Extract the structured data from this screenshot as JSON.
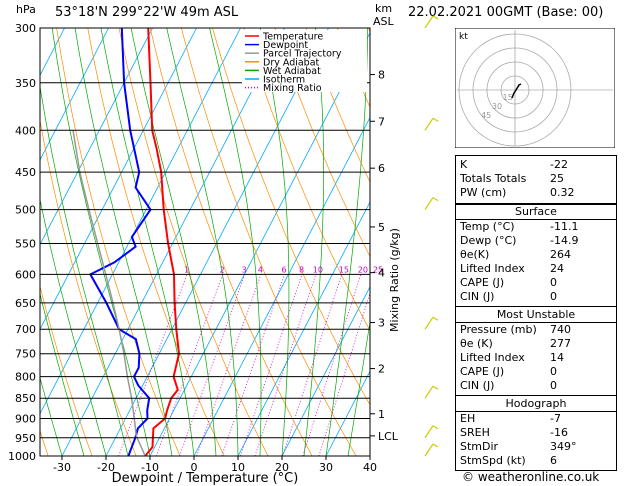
{
  "header": {
    "hpa_label": "hPa",
    "location": "53°18'N  299°22'W  49m  ASL",
    "km_label": "km",
    "asl_label": "ASL",
    "datetime": "22.02.2021  00GMT  (Base: 00)"
  },
  "chart_data": {
    "type": "line",
    "title": "",
    "xlabel": "Dewpoint / Temperature (°C)",
    "ylabel": "hPa",
    "right_axis_label": "Mixing Ratio (g/kg)",
    "x_ticks": [
      -30,
      -20,
      -10,
      0,
      10,
      20,
      30,
      40
    ],
    "xlim": [
      -35,
      40
    ],
    "pressure_levels": [
      300,
      350,
      400,
      450,
      500,
      550,
      600,
      650,
      700,
      750,
      800,
      850,
      900,
      950,
      1000
    ],
    "ylim": [
      1000,
      300
    ],
    "height_ticks": [
      {
        "label": "8",
        "p": 342
      },
      {
        "label": "7",
        "p": 390
      },
      {
        "label": "6",
        "p": 445
      },
      {
        "label": "5",
        "p": 525
      },
      {
        "label": "4",
        "p": 597
      },
      {
        "label": "3",
        "p": 687
      },
      {
        "label": "2",
        "p": 782
      },
      {
        "label": "1",
        "p": 888
      },
      {
        "label": "LCL",
        "p": 945
      }
    ],
    "mixing_ratio_labels": [
      "1",
      "2",
      "3",
      "4",
      "6",
      "8",
      "10",
      "15",
      "20",
      "25"
    ],
    "legend": {
      "placement": "top-right",
      "entries": [
        {
          "name": "Temperature",
          "color": "#ff0000",
          "dash": "solid"
        },
        {
          "name": "Dewpoint",
          "color": "#0000ff",
          "dash": "solid"
        },
        {
          "name": "Parcel Trajectory",
          "color": "#999999",
          "dash": "solid"
        },
        {
          "name": "Dry Adiabat",
          "color": "#ff8c00",
          "dash": "solid"
        },
        {
          "name": "Wet Adiabat",
          "color": "#00aa00",
          "dash": "solid"
        },
        {
          "name": "Isotherm",
          "color": "#00aaff",
          "dash": "solid"
        },
        {
          "name": "Mixing Ratio",
          "color": "#cc00cc",
          "dash": "dotted"
        }
      ]
    },
    "series": [
      {
        "name": "Temperature",
        "color": "#ff0000",
        "points": [
          [
            1000,
            -11.1
          ],
          [
            975,
            -10.5
          ],
          [
            950,
            -11.5
          ],
          [
            925,
            -12.5
          ],
          [
            900,
            -11
          ],
          [
            880,
            -11.5
          ],
          [
            850,
            -12
          ],
          [
            830,
            -11.5
          ],
          [
            800,
            -14
          ],
          [
            750,
            -15.5
          ],
          [
            700,
            -19
          ],
          [
            650,
            -22.5
          ],
          [
            600,
            -26
          ],
          [
            550,
            -31
          ],
          [
            500,
            -36
          ],
          [
            450,
            -41
          ],
          [
            420,
            -45
          ],
          [
            400,
            -48
          ],
          [
            350,
            -54
          ],
          [
            300,
            -61
          ]
        ]
      },
      {
        "name": "Dewpoint",
        "color": "#0000ff",
        "points": [
          [
            1000,
            -14.9
          ],
          [
            950,
            -15.5
          ],
          [
            925,
            -16
          ],
          [
            900,
            -15
          ],
          [
            880,
            -16
          ],
          [
            850,
            -17
          ],
          [
            820,
            -21
          ],
          [
            800,
            -23
          ],
          [
            780,
            -23
          ],
          [
            750,
            -24.5
          ],
          [
            720,
            -27
          ],
          [
            700,
            -32
          ],
          [
            650,
            -38
          ],
          [
            600,
            -45
          ],
          [
            580,
            -41
          ],
          [
            555,
            -38
          ],
          [
            540,
            -40
          ],
          [
            500,
            -39
          ],
          [
            470,
            -45
          ],
          [
            450,
            -46
          ],
          [
            400,
            -53
          ],
          [
            350,
            -60
          ],
          [
            300,
            -67
          ]
        ]
      },
      {
        "name": "Parcel Trajectory",
        "color": "#999999",
        "points": [
          [
            1000,
            -11.1
          ],
          [
            945,
            -15.5
          ],
          [
            900,
            -18
          ],
          [
            850,
            -21
          ],
          [
            800,
            -24.5
          ],
          [
            750,
            -28
          ],
          [
            700,
            -32
          ],
          [
            650,
            -36.5
          ],
          [
            600,
            -41.5
          ],
          [
            550,
            -47
          ],
          [
            500,
            -53
          ],
          [
            450,
            -59.5
          ],
          [
            400,
            -66
          ]
        ]
      }
    ],
    "wind_barbs_color": "#cccc00"
  },
  "hodograph": {
    "unit_label": "kt",
    "ring_labels": [
      "15",
      "30",
      "45"
    ]
  },
  "indices": {
    "rows": [
      {
        "k": "K",
        "v": "-22"
      },
      {
        "k": "Totals Totals",
        "v": "25"
      },
      {
        "k": "PW (cm)",
        "v": "0.32"
      }
    ]
  },
  "surface": {
    "title": "Surface",
    "rows": [
      {
        "k": "Temp (°C)",
        "v": "-11.1"
      },
      {
        "k": "Dewp (°C)",
        "v": "-14.9"
      },
      {
        "k": "θe(K)",
        "v": "264"
      },
      {
        "k": "Lifted Index",
        "v": "24"
      },
      {
        "k": "CAPE (J)",
        "v": "0"
      },
      {
        "k": "CIN (J)",
        "v": "0"
      }
    ]
  },
  "most_unstable": {
    "title": "Most Unstable",
    "rows": [
      {
        "k": "Pressure (mb)",
        "v": "740"
      },
      {
        "k": "θe (K)",
        "v": "277"
      },
      {
        "k": "Lifted Index",
        "v": "14"
      },
      {
        "k": "CAPE (J)",
        "v": "0"
      },
      {
        "k": "CIN (J)",
        "v": "0"
      }
    ]
  },
  "hodograph_table": {
    "title": "Hodograph",
    "rows": [
      {
        "k": "EH",
        "v": "-7"
      },
      {
        "k": "SREH",
        "v": "-16"
      },
      {
        "k": "StmDir",
        "v": "349°"
      },
      {
        "k": "StmSpd (kt)",
        "v": "6"
      }
    ]
  },
  "footer": {
    "copyright": "© weatheronline.co.uk"
  }
}
